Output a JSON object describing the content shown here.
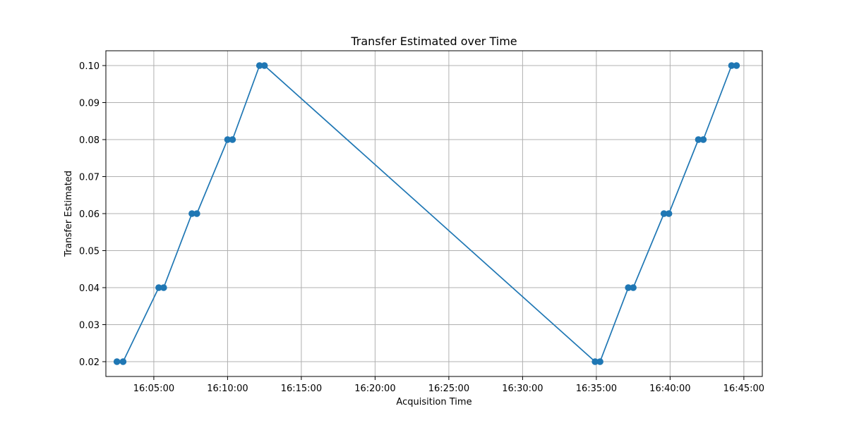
{
  "chart_data": {
    "type": "line",
    "title": "Transfer Estimated over Time",
    "xlabel": "Acquisition Time",
    "ylabel": "Transfer Estimated",
    "grid": true,
    "x_tick_labels": [
      "16:05:00",
      "16:10:00",
      "16:15:00",
      "16:20:00",
      "16:25:00",
      "16:30:00",
      "16:35:00",
      "16:40:00",
      "16:45:00"
    ],
    "y_tick_labels": [
      "0.02",
      "0.03",
      "0.04",
      "0.05",
      "0.06",
      "0.07",
      "0.08",
      "0.09",
      "0.10"
    ],
    "xlim": [
      "16:01:45",
      "16:46:15"
    ],
    "ylim": [
      0.016,
      0.104
    ],
    "series": [
      {
        "name": "",
        "color": "#1f77b4",
        "marker": "circle",
        "points": [
          {
            "x": "16:02:30",
            "y": 0.02
          },
          {
            "x": "16:02:55",
            "y": 0.02
          },
          {
            "x": "16:05:20",
            "y": 0.04
          },
          {
            "x": "16:05:40",
            "y": 0.04
          },
          {
            "x": "16:07:35",
            "y": 0.06
          },
          {
            "x": "16:07:55",
            "y": 0.06
          },
          {
            "x": "16:10:00",
            "y": 0.08
          },
          {
            "x": "16:10:20",
            "y": 0.08
          },
          {
            "x": "16:12:10",
            "y": 0.1
          },
          {
            "x": "16:12:30",
            "y": 0.1
          },
          {
            "x": "16:34:55",
            "y": 0.02
          },
          {
            "x": "16:35:15",
            "y": 0.02
          },
          {
            "x": "16:37:10",
            "y": 0.04
          },
          {
            "x": "16:37:30",
            "y": 0.04
          },
          {
            "x": "16:39:35",
            "y": 0.06
          },
          {
            "x": "16:39:55",
            "y": 0.06
          },
          {
            "x": "16:41:55",
            "y": 0.08
          },
          {
            "x": "16:42:15",
            "y": 0.08
          },
          {
            "x": "16:44:10",
            "y": 0.1
          },
          {
            "x": "16:44:30",
            "y": 0.1
          }
        ]
      }
    ]
  }
}
